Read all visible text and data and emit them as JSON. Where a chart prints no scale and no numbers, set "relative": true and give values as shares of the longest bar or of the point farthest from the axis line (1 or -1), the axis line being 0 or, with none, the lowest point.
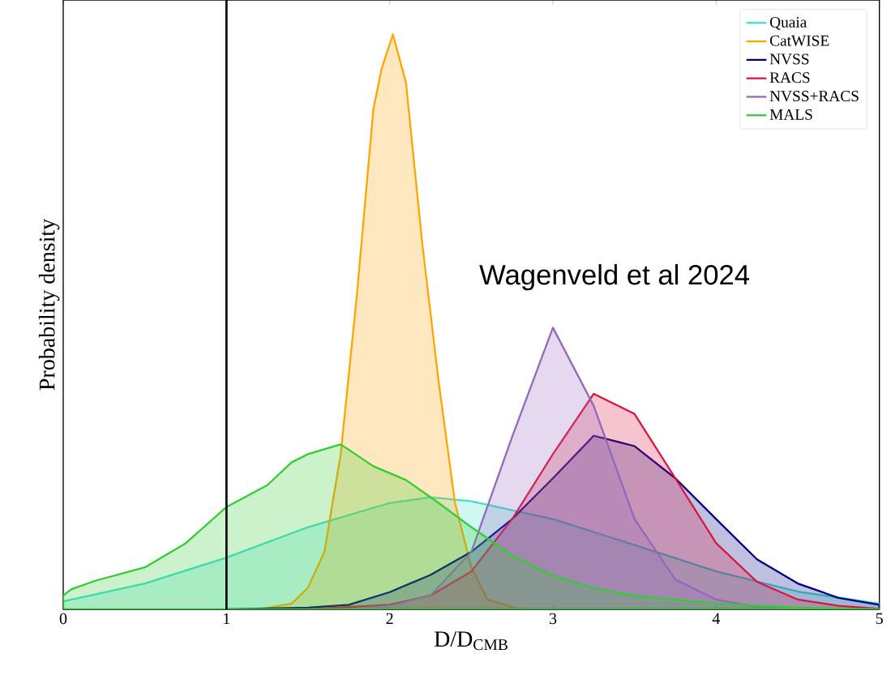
{
  "chart_data": {
    "type": "area",
    "relative": true,
    "xlabel": "D/D$_{CMB}$",
    "ylabel": "Probability density",
    "xlim": [
      0,
      5
    ],
    "xticks": [
      0,
      1,
      2,
      3,
      4,
      5
    ],
    "legend": "top right",
    "ref_lines": [
      {
        "axis": "x",
        "value": 1,
        "color": "#000000"
      }
    ],
    "annotations": [
      "Wagenveld et al 2024"
    ],
    "series": [
      {
        "name": "Quaia",
        "color": "#40e0d0",
        "x": [
          0,
          0.5,
          1,
          1.5,
          2,
          2.25,
          2.5,
          3,
          3.5,
          4,
          4.5,
          5
        ],
        "values": [
          0.014,
          0.045,
          0.09,
          0.143,
          0.185,
          0.195,
          0.188,
          0.157,
          0.112,
          0.066,
          0.031,
          0.01
        ]
      },
      {
        "name": "CatWISE",
        "color": "#ffa500",
        "x": [
          1.2,
          1.4,
          1.5,
          1.6,
          1.7,
          1.8,
          1.9,
          1.95,
          2.02,
          2.1,
          2.2,
          2.3,
          2.4,
          2.5,
          2.6,
          2.8
        ],
        "values": [
          0,
          0.01,
          0.038,
          0.1,
          0.27,
          0.55,
          0.87,
          0.94,
          1,
          0.916,
          0.635,
          0.396,
          0.185,
          0.073,
          0.017,
          0
        ]
      },
      {
        "name": "NVSS",
        "color": "#000080",
        "x": [
          1,
          1.5,
          1.75,
          2,
          2.25,
          2.5,
          2.75,
          3,
          3.25,
          3.5,
          3.75,
          4,
          4.25,
          4.5,
          4.75,
          5
        ],
        "values": [
          0,
          0.003,
          0.008,
          0.03,
          0.06,
          0.1,
          0.157,
          0.228,
          0.302,
          0.284,
          0.228,
          0.157,
          0.087,
          0.045,
          0.02,
          0.008
        ]
      },
      {
        "name": "RACS",
        "color": "#dc143c",
        "x": [
          1.5,
          2,
          2.25,
          2.5,
          2.75,
          3,
          3.25,
          3.5,
          3.75,
          4,
          4.25,
          4.5,
          4.75,
          5
        ],
        "values": [
          0,
          0.008,
          0.024,
          0.066,
          0.157,
          0.27,
          0.375,
          0.34,
          0.228,
          0.115,
          0.048,
          0.017,
          0.006,
          0.001
        ]
      },
      {
        "name": "NVSS+RACS",
        "color": "#9467bd",
        "x": [
          1.75,
          2,
          2.25,
          2.5,
          2.75,
          3,
          3.25,
          3.5,
          3.75,
          4,
          4.25,
          4.5
        ],
        "values": [
          0,
          0.006,
          0.024,
          0.1,
          0.3,
          0.49,
          0.354,
          0.157,
          0.052,
          0.017,
          0.004,
          0
        ]
      },
      {
        "name": "MALS",
        "color": "#32cd32",
        "x": [
          0,
          0.05,
          0.2,
          0.5,
          0.75,
          1,
          1.25,
          1.4,
          1.5,
          1.7,
          1.9,
          2.1,
          2.3,
          2.5,
          2.75,
          3,
          3.25,
          3.5,
          4,
          4.5,
          5
        ],
        "values": [
          0.024,
          0.035,
          0.05,
          0.073,
          0.115,
          0.178,
          0.216,
          0.256,
          0.27,
          0.287,
          0.249,
          0.225,
          0.185,
          0.143,
          0.094,
          0.059,
          0.037,
          0.024,
          0.01,
          0.003,
          0
        ]
      }
    ]
  }
}
